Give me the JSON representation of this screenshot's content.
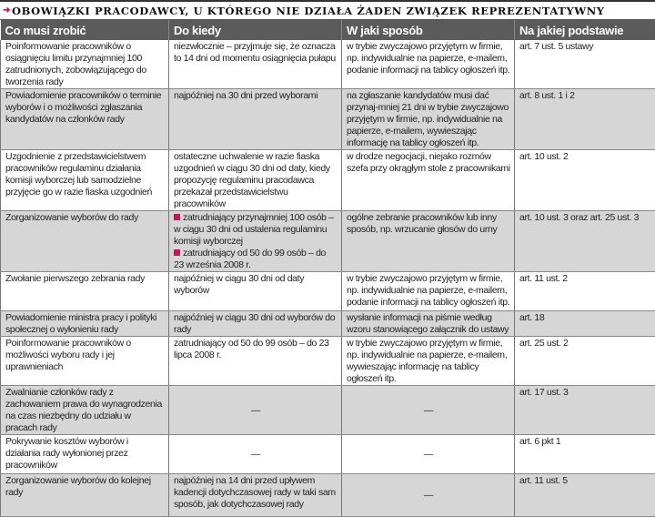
{
  "title": "OBOWIĄZKI PRACODAWCY, U KTÓREGO NIE DZIAŁA ŻADEN ZWIĄZEK REPREZENTATYWNY",
  "accent_color": "#d0105a",
  "headers": [
    "Co musi zrobić",
    "Do kiedy",
    "W jaki sposób",
    "Na jakiej podstawie"
  ],
  "rows": [
    {
      "what": "Poinformowanie pracowników o osiągnięciu limitu przynajmniej 100 zatrudnionych, zobowiązującego do tworzenia rady",
      "when": "niezwłocznie – przyjmuje się, że oznacza to 14 dni od momentu osiągnięcia pułapu",
      "how": "w trybie zwyczajowo przyjętym w firmie, np. indywidualnie na papierze, e-mailem, podanie informacji na tablicy ogłoszeń itp.",
      "basis": "art. 7 ust. 5 ustawy"
    },
    {
      "what": "Powiadomienie pracowników o terminie wyborów i o możliwości zgłaszania kandydatów na członków rady",
      "when": "najpóźniej na 30 dni przed wyborami",
      "how": "na zgłaszanie kandydatów musi dać przynaj-mniej 21 dni w trybie zwyczajowo przyjętym w firmie, np. indywidualnie na papierze, e-mailem, wywieszając informację na tablicy ogłoszeń itp.",
      "basis": "art. 8 ust. 1 i 2"
    },
    {
      "what": "Uzgodnienie z przedstawicielstwem pracowników regulaminu działania komisji wyborczej lub samodzielne przyjęcie go w razie fiaska uzgodnień",
      "when": "ostateczne uchwalenie w razie fiaska uzgodnień w ciągu 30 dni od daty, kiedy propozycję regulaminu pracodawca przekazał przedstawicielstwu pracowników",
      "how": "w drodze negocjacji, niejako rozmów szefa przy okrągłym stole z pracownikami",
      "basis": "art. 10 ust. 2"
    },
    {
      "what": "Zorganizowanie wyborów do rady",
      "when_bullets": [
        "zatrudniający przynajmniej 100 osób – w ciągu 30 dni od ustalenia regulaminu komisji wyborczej",
        "zatrudniający od 50 do 99 osób – do 23 września 2008 r."
      ],
      "how": "ogólne zebranie pracowników lub inny sposób, np. wrzucanie głosów do urny",
      "basis": "art. 10 ust. 3 oraz art. 25 ust. 3"
    },
    {
      "what": "Zwołanie pierwszego zebrania rady",
      "when": "najpóźniej w ciągu 30 dni od daty wyborów",
      "how": "w trybie zwyczajowo przyjętym w firmie, np. indywidualnie na papierze, e-mailem, podanie informacji na tablicy ogłoszeń itp.",
      "basis": "art. 11 ust. 2"
    },
    {
      "what": "Powiadomienie ministra pracy i polityki społecznej o wyłonieniu rady",
      "when": "najpóźniej w ciągu 30 dni od wyborów do rady",
      "how": "wysłanie informacji na piśmie według wzoru stanowiącego załącznik do ustawy",
      "basis": "art. 18"
    },
    {
      "what": "Poinformowanie pracowników o możliwości wyboru rady i jej uprawnieniach",
      "when": "zatrudniający od 50 do 99 osób – do 23 lipca 2008 r.",
      "how": "w trybie zwyczajowo przyjętym w firmie, np. indywidualnie na papierze, e-mailem, wywieszając informację na tablicy ogłoszeń itp.",
      "basis": "art. 25 ust. 2"
    },
    {
      "what": "Zwalnianie członków rady z zachowaniem prawa do wynagrodzenia na czas niezbędny do udziału w pracach rady",
      "when": "—",
      "how": "—",
      "basis": "art. 17 ust. 3"
    },
    {
      "what": "Pokrywanie kosztów wyborów i działania rady wyłonionej przez pracowników",
      "when": "—",
      "how": "—",
      "basis": "art. 6 pkt 1"
    },
    {
      "what": "Zorganizowanie wyborów do kolejnej rady",
      "when": "najpóźniej na 14 dni przed upływem kadencji dotychczasowej rady w taki sam sposób, jak dotychczasowej rady",
      "how": "—",
      "basis": "art. 11 ust. 5"
    }
  ]
}
